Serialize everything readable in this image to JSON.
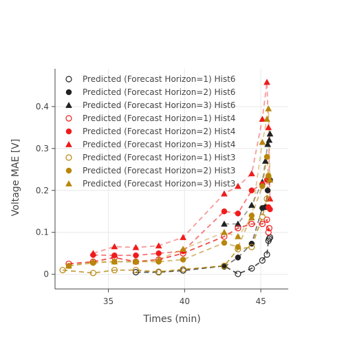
{
  "chart_data": {
    "type": "scatter",
    "xlabel": "Times (min)",
    "ylabel": "Voltage MAE [V]",
    "xlim": [
      31.5,
      46.8
    ],
    "ylim": [
      -0.035,
      0.49
    ],
    "x_ticks": [
      35,
      40,
      45
    ],
    "y_ticks": [
      0,
      0.1,
      0.2,
      0.3,
      0.4
    ],
    "grid": true,
    "legend_position": "top-left",
    "colors": {
      "Hist6": "#222222",
      "Hist4": "#ef1c1c",
      "Hist3": "#b8860b"
    },
    "series": [
      {
        "name": "Predicted (Forecast Horizon=1) Hist6",
        "hist": "Hist6",
        "marker": "circle-open",
        "x": [
          36.8,
          38.3,
          39.9,
          42.6,
          43.5,
          44.4,
          45.1,
          45.4,
          45.5,
          45.55,
          45.6
        ],
        "y": [
          0.005,
          0.005,
          0.009,
          0.02,
          0.001,
          0.014,
          0.033,
          0.047,
          0.08,
          0.085,
          0.088
        ]
      },
      {
        "name": "Predicted (Forecast Horizon=2) Hist6",
        "hist": "Hist6",
        "marker": "circle",
        "x": [
          42.6,
          43.5,
          44.4,
          45.1,
          45.3,
          45.45,
          45.6
        ],
        "y": [
          0.018,
          0.04,
          0.073,
          0.158,
          0.16,
          0.2,
          0.225
        ]
      },
      {
        "name": "Predicted (Forecast Horizon=3) Hist6",
        "hist": "Hist6",
        "marker": "triangle",
        "x": [
          42.6,
          43.5,
          44.4,
          45.1,
          45.3,
          45.45,
          45.55,
          45.6
        ],
        "y": [
          0.12,
          0.12,
          0.165,
          0.22,
          0.27,
          0.31,
          0.32,
          0.335
        ]
      },
      {
        "name": "Predicted (Forecast Horizon=1) Hist4",
        "hist": "Hist4",
        "marker": "circle-open",
        "x": [
          32.4,
          34.0,
          35.4,
          36.8,
          38.3,
          39.9,
          42.6,
          43.5,
          44.4,
          45.1,
          45.4,
          45.5,
          45.55
        ],
        "y": [
          0.025,
          0.03,
          0.04,
          0.03,
          0.035,
          0.05,
          0.09,
          0.11,
          0.12,
          0.12,
          0.13,
          0.1,
          0.11
        ]
      },
      {
        "name": "Predicted (Forecast Horizon=2) Hist4",
        "hist": "Hist4",
        "marker": "circle",
        "x": [
          34.0,
          35.4,
          36.8,
          38.3,
          39.9,
          42.6,
          43.5,
          44.4,
          45.1,
          45.4,
          45.5,
          45.6
        ],
        "y": [
          0.046,
          0.045,
          0.045,
          0.05,
          0.055,
          0.15,
          0.145,
          0.2,
          0.215,
          0.225,
          0.16,
          0.155
        ]
      },
      {
        "name": "Predicted (Forecast Horizon=3) Hist4",
        "hist": "Hist4",
        "marker": "triangle",
        "x": [
          34.0,
          35.4,
          36.8,
          38.3,
          39.9,
          42.6,
          43.5,
          44.4,
          45.1,
          45.4,
          45.5,
          45.6
        ],
        "y": [
          0.05,
          0.066,
          0.064,
          0.068,
          0.088,
          0.192,
          0.21,
          0.24,
          0.37,
          0.458,
          0.35,
          0.18
        ]
      },
      {
        "name": "Predicted (Forecast Horizon=1) Hist3",
        "hist": "Hist3",
        "marker": "circle-open",
        "x": [
          32.0,
          34.0,
          35.4,
          36.8,
          38.3,
          39.9,
          42.6,
          43.5,
          44.4,
          45.1,
          45.4,
          45.5
        ],
        "y": [
          0.01,
          0.003,
          0.01,
          0.01,
          0.006,
          0.012,
          0.02,
          0.06,
          0.065,
          0.137,
          0.18,
          0.23
        ]
      },
      {
        "name": "Predicted (Forecast Horizon=2) Hist3",
        "hist": "Hist3",
        "marker": "circle",
        "x": [
          32.4,
          34.0,
          35.4,
          36.8,
          38.3,
          39.9,
          42.6,
          43.5,
          44.4,
          45.1,
          45.4,
          45.5
        ],
        "y": [
          0.02,
          0.027,
          0.03,
          0.03,
          0.03,
          0.035,
          0.075,
          0.065,
          0.14,
          0.21,
          0.28,
          0.235
        ]
      },
      {
        "name": "Predicted (Forecast Horizon=3) Hist3",
        "hist": "Hist3",
        "marker": "triangle",
        "x": [
          32.4,
          34.0,
          35.4,
          36.8,
          38.3,
          39.9,
          42.6,
          43.5,
          44.4,
          45.1,
          45.4,
          45.5,
          45.6
        ],
        "y": [
          0.02,
          0.03,
          0.03,
          0.03,
          0.035,
          0.06,
          0.1,
          0.09,
          0.135,
          0.315,
          0.37,
          0.395,
          0.225
        ]
      }
    ]
  }
}
